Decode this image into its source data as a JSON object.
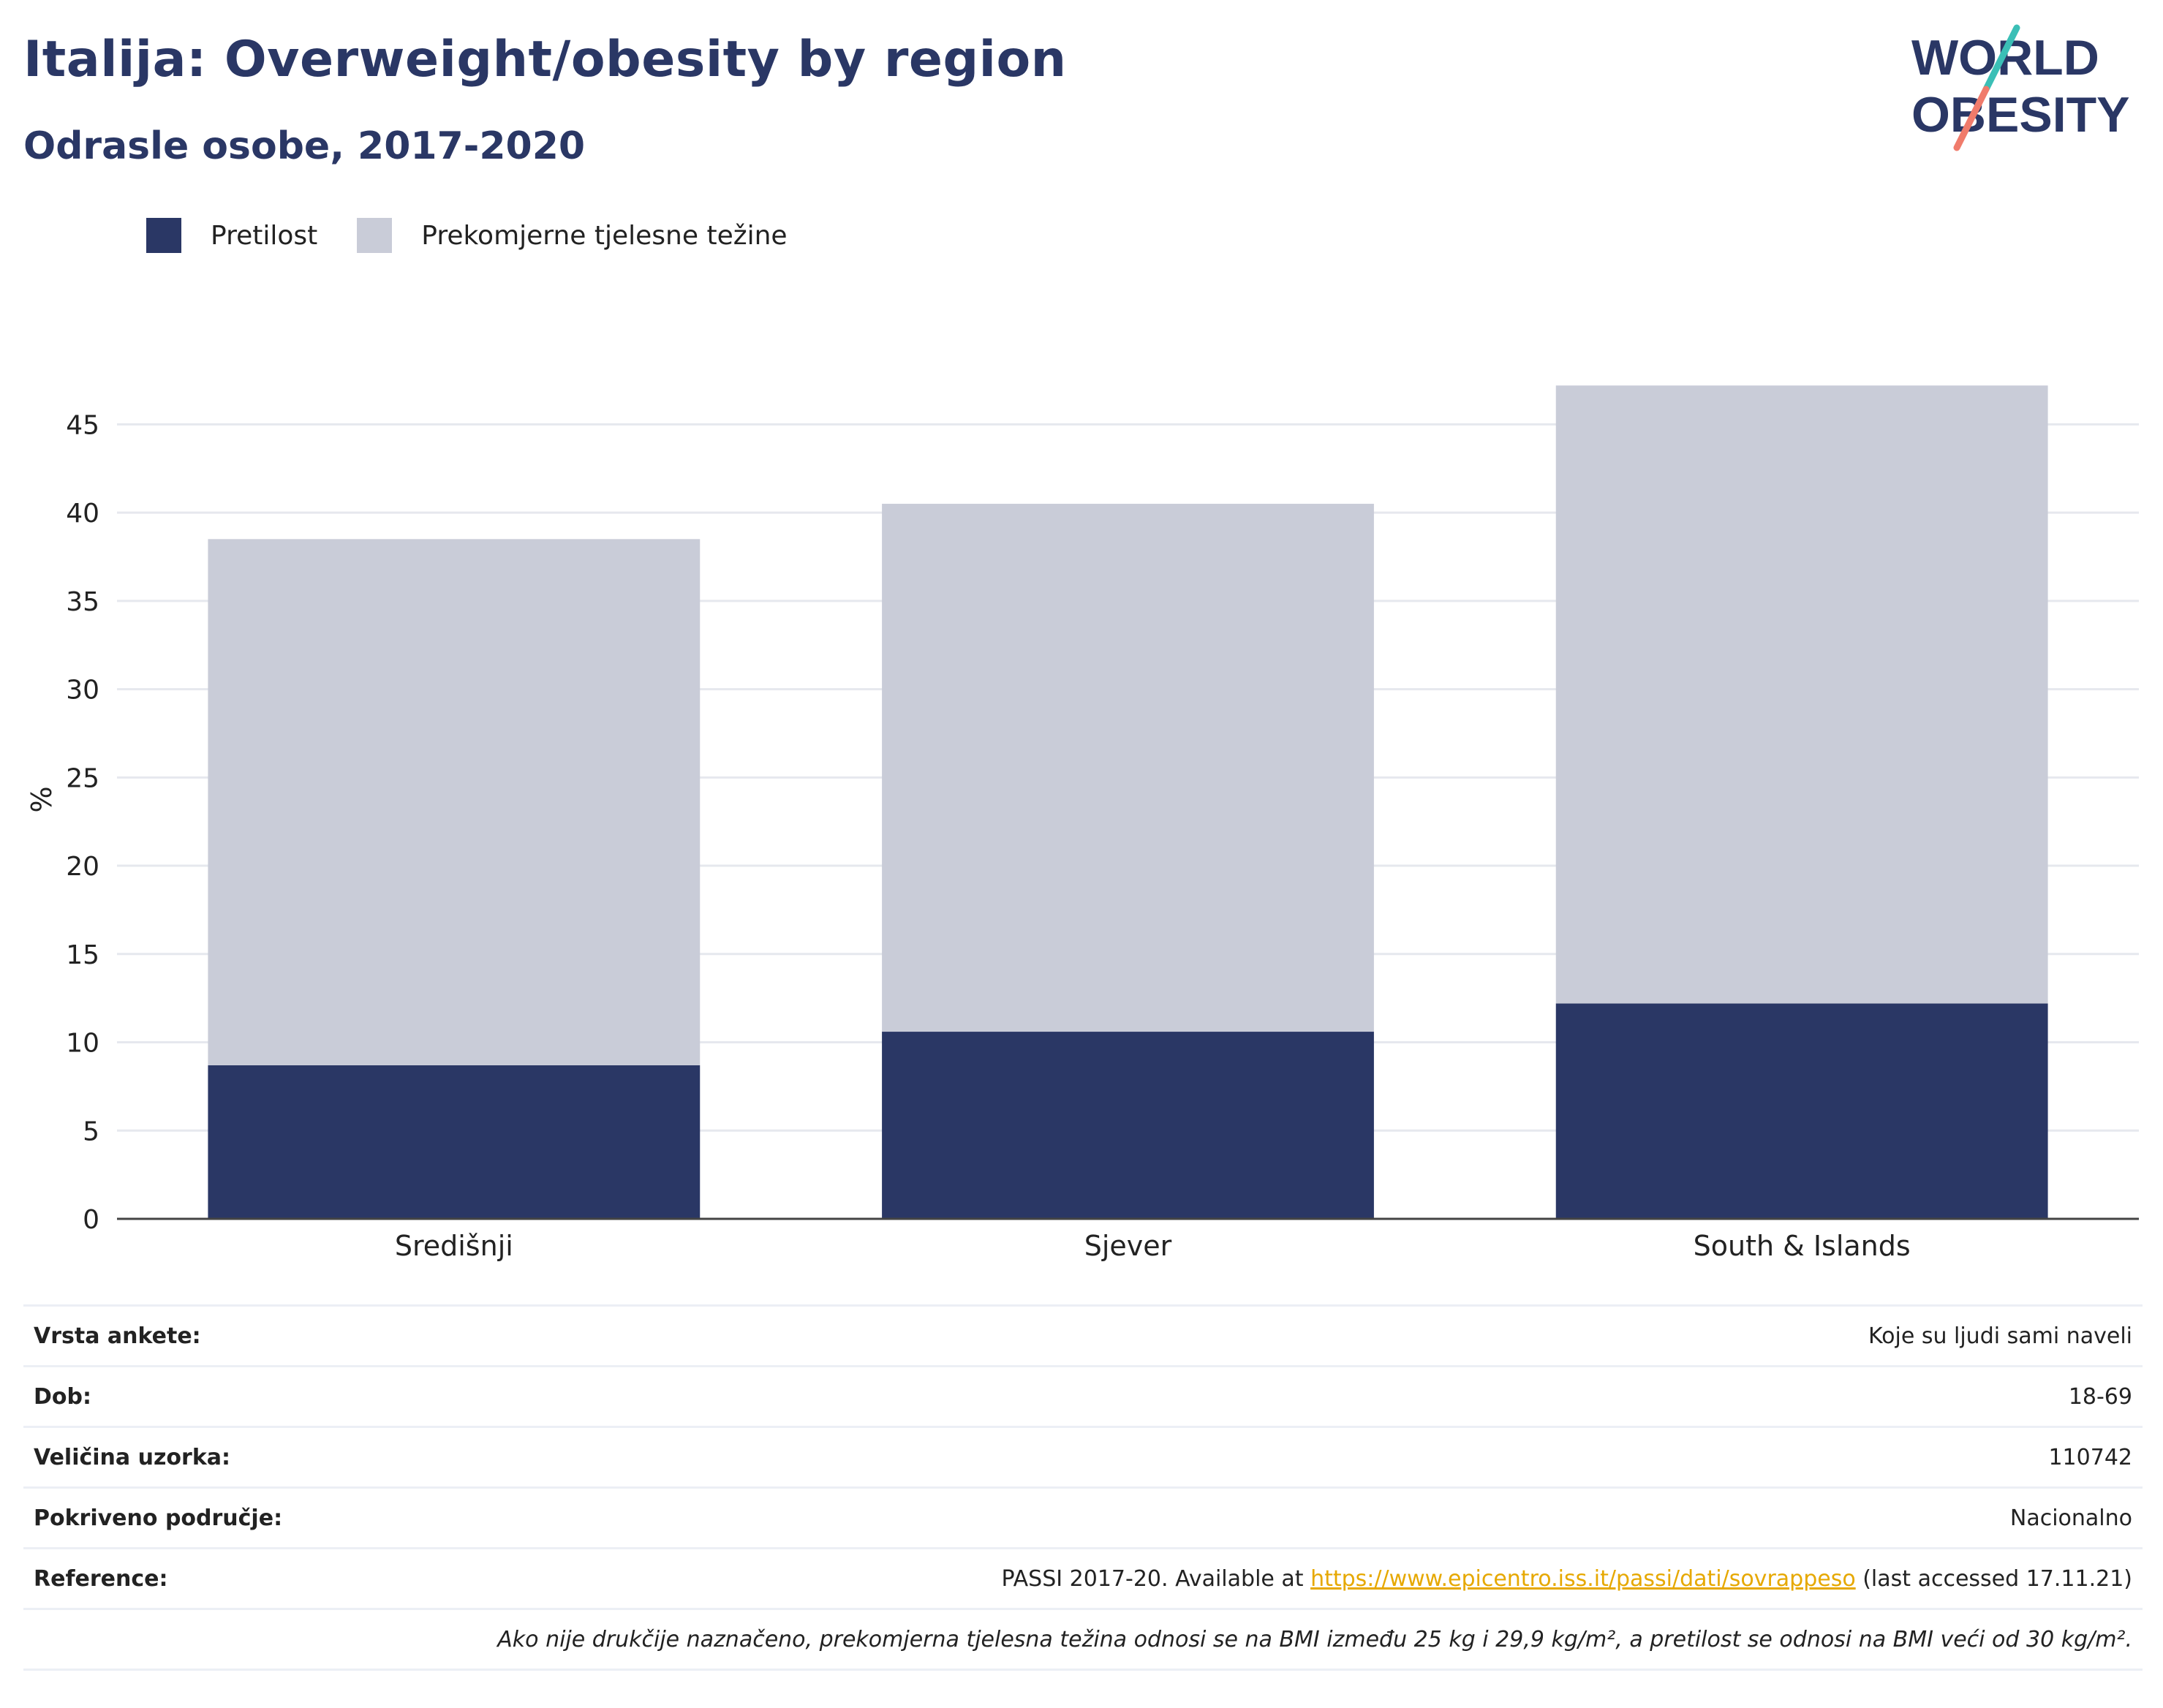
{
  "header": {
    "title": "Italija: Overweight/obesity by region",
    "subtitle": "Odrasle osobe, 2017-2020"
  },
  "logo": {
    "line1": "WORLD",
    "line2": "OBESITY"
  },
  "colors": {
    "obesity": "#2a3765",
    "overweight": "#c9ccd8",
    "title": "#2a3765",
    "link": "#e6a800",
    "logo_teal": "#3bbfb6",
    "logo_coral": "#f07b6b"
  },
  "legend": [
    {
      "label": "Pretilost",
      "color": "#2a3765"
    },
    {
      "label": "Prekomjerne tjelesne težine",
      "color": "#c9ccd8"
    }
  ],
  "chart_data": {
    "type": "bar",
    "stacked": true,
    "categories": [
      "Središnji",
      "Sjever",
      "South & Islands"
    ],
    "series": [
      {
        "name": "Pretilost",
        "values": [
          8.7,
          10.6,
          12.2
        ]
      },
      {
        "name": "Prekomjerne tjelesne težine",
        "values": [
          29.8,
          29.9,
          35.0
        ]
      }
    ],
    "ylabel": "%",
    "ylim": [
      0,
      47.5
    ],
    "yticks": [
      0,
      5,
      10,
      15,
      20,
      25,
      30,
      35,
      40,
      45
    ],
    "grid": true,
    "legend_position": "top-left"
  },
  "info": {
    "survey_type": {
      "label": "Vrsta ankete:",
      "value": "Koje su ljudi sami naveli"
    },
    "age": {
      "label": "Dob:",
      "value": "18-69"
    },
    "sample_size": {
      "label": "Veličina uzorka:",
      "value": "110742"
    },
    "coverage": {
      "label": "Pokriveno područje:",
      "value": "Nacionalno"
    },
    "reference": {
      "label": "Reference:",
      "prefix": "PASSI 2017-20. Available at ",
      "link": "https://www.epicentro.iss.it/passi/dati/sovrappeso",
      "suffix": " (last accessed 17.11.21)"
    },
    "note": "Ako nije drukčije naznačeno, prekomjerna tjelesna težina odnosi se na BMI između 25 kg i 29,9 kg/m², a pretilost se odnosi na BMI veći od 30 kg/m²."
  }
}
